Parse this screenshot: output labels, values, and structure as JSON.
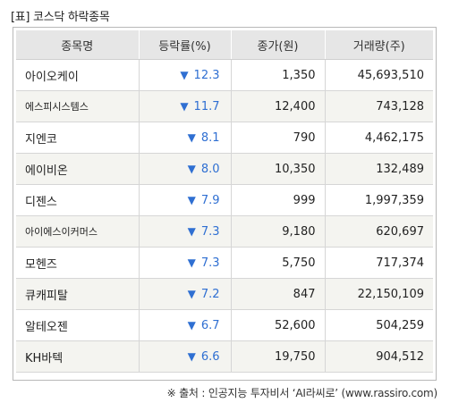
{
  "title": "[표] 코스닥 하락종목",
  "headers": [
    "종목명",
    "등락률(%)",
    "종가(원)",
    "거래량(주)"
  ],
  "down_symbol": "▼",
  "colors": {
    "rate": "#2f6fd2",
    "header_bg": "#e6e6e6",
    "stripe_bg": "#f4f4f0"
  },
  "rows": [
    {
      "name": "아이오케이",
      "rate": "12.3",
      "close": "1,350",
      "volume": "45,693,510"
    },
    {
      "name": "에스피시스템스",
      "rate": "11.7",
      "close": "12,400",
      "volume": "743,128"
    },
    {
      "name": "지엔코",
      "rate": "8.1",
      "close": "790",
      "volume": "4,462,175"
    },
    {
      "name": "에이비온",
      "rate": "8.0",
      "close": "10,350",
      "volume": "132,489"
    },
    {
      "name": "디젠스",
      "rate": "7.9",
      "close": "999",
      "volume": "1,997,359"
    },
    {
      "name": "아이에스이커머스",
      "rate": "7.3",
      "close": "9,180",
      "volume": "620,697"
    },
    {
      "name": "모헨즈",
      "rate": "7.3",
      "close": "5,750",
      "volume": "717,374"
    },
    {
      "name": "큐캐피탈",
      "rate": "7.2",
      "close": "847",
      "volume": "22,150,109"
    },
    {
      "name": "알테오젠",
      "rate": "6.7",
      "close": "52,600",
      "volume": "504,259"
    },
    {
      "name": "KH바텍",
      "rate": "6.6",
      "close": "19,750",
      "volume": "904,512"
    }
  ],
  "footer": "※ 출처 : 인공지능 투자비서 ‘AI라씨로’ (www.rassiro.com)"
}
